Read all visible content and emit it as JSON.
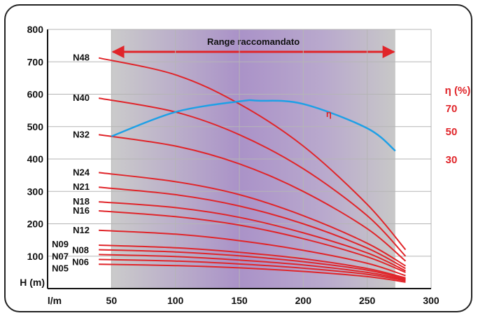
{
  "chart_data": {
    "type": "line",
    "title": "",
    "xlabel": "l/m",
    "ylabel": "H (m)",
    "xlim": [
      0,
      300
    ],
    "ylim": [
      0,
      800
    ],
    "x_ticks": [
      50,
      100,
      150,
      200,
      250,
      300
    ],
    "y_ticks": [
      100,
      200,
      300,
      400,
      500,
      600,
      700,
      800
    ],
    "grid": true,
    "recommended_range": {
      "label": "Range raccomandato",
      "from": 50,
      "to": 272
    },
    "series_color": "#e0252a",
    "series": [
      {
        "name": "N48",
        "x": [
          40,
          100,
          150,
          200,
          250,
          280
        ],
        "values": [
          712,
          660,
          570,
          440,
          260,
          120
        ]
      },
      {
        "name": "N40",
        "x": [
          40,
          100,
          150,
          200,
          250,
          280
        ],
        "values": [
          588,
          545,
          475,
          370,
          225,
          100
        ]
      },
      {
        "name": "N32",
        "x": [
          40,
          100,
          150,
          200,
          250,
          280
        ],
        "values": [
          475,
          440,
          385,
          300,
          185,
          85
        ]
      },
      {
        "name": "N24",
        "x": [
          40,
          100,
          150,
          200,
          250,
          280
        ],
        "values": [
          358,
          330,
          290,
          225,
          140,
          70
        ]
      },
      {
        "name": "N21",
        "x": [
          40,
          100,
          150,
          200,
          250,
          280
        ],
        "values": [
          313,
          290,
          255,
          200,
          125,
          62
        ]
      },
      {
        "name": "N18",
        "x": [
          40,
          100,
          150,
          200,
          250,
          280
        ],
        "values": [
          268,
          250,
          220,
          172,
          110,
          55
        ]
      },
      {
        "name": "N16",
        "x": [
          40,
          100,
          150,
          200,
          250,
          280
        ],
        "values": [
          240,
          222,
          196,
          154,
          98,
          50
        ]
      },
      {
        "name": "N12",
        "x": [
          40,
          100,
          150,
          200,
          250,
          280
        ],
        "values": [
          180,
          168,
          148,
          118,
          78,
          40
        ]
      },
      {
        "name": "N09",
        "x": [
          40,
          100,
          150,
          200,
          250,
          280
        ],
        "values": [
          134,
          126,
          112,
          92,
          62,
          33
        ]
      },
      {
        "name": "N08",
        "x": [
          40,
          100,
          150,
          200,
          250,
          280
        ],
        "values": [
          120,
          113,
          101,
          83,
          57,
          30
        ]
      },
      {
        "name": "N07",
        "x": [
          40,
          100,
          150,
          200,
          250,
          280
        ],
        "values": [
          105,
          99,
          88,
          73,
          50,
          27
        ]
      },
      {
        "name": "N06",
        "x": [
          40,
          100,
          150,
          200,
          250,
          280
        ],
        "values": [
          90,
          85,
          76,
          63,
          44,
          24
        ]
      },
      {
        "name": "N05",
        "x": [
          40,
          100,
          150,
          200,
          250,
          280
        ],
        "values": [
          75,
          71,
          64,
          53,
          37,
          20
        ]
      }
    ],
    "efficiency": {
      "name": "η",
      "axis_label": "η (%)",
      "ticks": [
        70,
        50,
        30
      ],
      "color": "#1ea0e6",
      "x": [
        50,
        100,
        150,
        165,
        200,
        250,
        272
      ],
      "values_on_h_axis": [
        470,
        545,
        578,
        580,
        570,
        495,
        425
      ]
    }
  }
}
